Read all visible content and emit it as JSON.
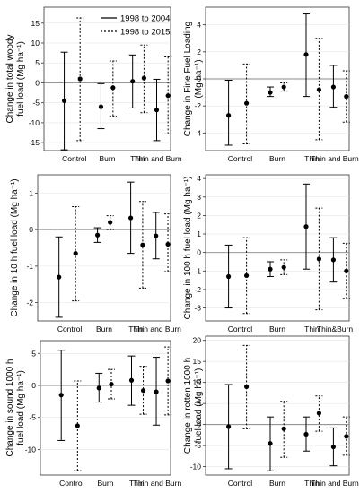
{
  "legend": {
    "solid_label": "1998 to 2004",
    "dotted_label": "1998 to 2015"
  },
  "chart_data": [
    {
      "type": "errorbar",
      "ylabel_lines": [
        "Change in total woody",
        "fuel load (Mg ha⁻¹)"
      ],
      "ylim": [
        -17,
        19
      ],
      "yticks": [
        -15,
        -10,
        -5,
        0,
        5,
        10,
        15
      ],
      "categories": [
        "Control",
        "Burn",
        "Thin",
        "Thin and Burn"
      ],
      "series": [
        {
          "name": "1998 to 2004",
          "mean": [
            -4.5,
            -6.0,
            0.4,
            -6.8
          ],
          "low": [
            -16.8,
            -11.5,
            -6.3,
            -14.5
          ],
          "high": [
            7.7,
            -0.2,
            7.0,
            0.9
          ]
        },
        {
          "name": "1998 to 2015",
          "mean": [
            1.0,
            -1.2,
            1.2,
            -3.2
          ],
          "low": [
            -14.5,
            -8.3,
            -7.5,
            -12.8
          ],
          "high": [
            16.3,
            5.5,
            9.5,
            6.5
          ]
        }
      ],
      "show_legend": true
    },
    {
      "type": "errorbar",
      "ylabel_lines": [
        "Change in Fine Fuel Loading",
        "(Mg ha⁻¹)"
      ],
      "ylim": [
        -5.3,
        5.3
      ],
      "yticks": [
        -4,
        -2,
        0,
        2,
        4
      ],
      "categories": [
        "Control",
        "Burn",
        "Thin",
        "Thin and Burn"
      ],
      "series": [
        {
          "name": "1998 to 2004",
          "mean": [
            -2.7,
            -1.0,
            1.8,
            -0.6
          ],
          "low": [
            -4.9,
            -1.3,
            -1.3,
            -2.1
          ],
          "high": [
            -0.1,
            -0.6,
            4.8,
            1.0
          ]
        },
        {
          "name": "1998 to 2015",
          "mean": [
            -1.8,
            -0.6,
            -0.8,
            -1.3
          ],
          "low": [
            -4.8,
            -0.9,
            -4.5,
            -3.2
          ],
          "high": [
            1.1,
            -0.3,
            3.0,
            0.6
          ]
        }
      ]
    },
    {
      "type": "errorbar",
      "ylabel_lines": [
        "Change in 10 h fuel load (Mg ha⁻¹)"
      ],
      "ylim": [
        -2.5,
        1.5
      ],
      "yticks": [
        -2,
        -1,
        0,
        1
      ],
      "categories": [
        "Control",
        "Burn",
        "Thin",
        "Thin and Burn"
      ],
      "series": [
        {
          "name": "1998 to 2004",
          "mean": [
            -1.3,
            -0.15,
            0.32,
            -0.17
          ],
          "low": [
            -2.4,
            -0.35,
            -0.65,
            -0.8
          ],
          "high": [
            -0.2,
            0.05,
            1.3,
            0.47
          ]
        },
        {
          "name": "1998 to 2015",
          "mean": [
            -0.65,
            0.2,
            -0.42,
            -0.4
          ],
          "low": [
            -1.95,
            0.0,
            -1.6,
            -1.15
          ],
          "high": [
            0.63,
            0.38,
            0.77,
            0.43
          ]
        }
      ]
    },
    {
      "type": "errorbar",
      "ylabel_lines": [
        "Change in 100 h fuel load (Mg ha⁻¹)"
      ],
      "ylim": [
        -3.7,
        4.2
      ],
      "yticks": [
        -3,
        -2,
        -1,
        0,
        1,
        2,
        3,
        4
      ],
      "categories": [
        "Control",
        "Burn",
        "Thin",
        "Thin&Burn"
      ],
      "series": [
        {
          "name": "1998 to 2004",
          "mean": [
            -1.3,
            -0.9,
            1.4,
            -0.4
          ],
          "low": [
            -3.0,
            -1.3,
            -0.9,
            -1.6
          ],
          "high": [
            0.4,
            -0.5,
            3.7,
            0.8
          ]
        },
        {
          "name": "1998 to 2015",
          "mean": [
            -1.25,
            -0.8,
            -0.35,
            -1.0
          ],
          "low": [
            -3.3,
            -1.2,
            -3.1,
            -2.5
          ],
          "high": [
            0.8,
            -0.4,
            2.4,
            0.5
          ]
        }
      ]
    },
    {
      "type": "errorbar",
      "ylabel_lines": [
        "Change in sound 1000 h",
        "fuel load (Mg ha⁻¹)"
      ],
      "ylim": [
        -14,
        7
      ],
      "yticks": [
        -10,
        -5,
        0,
        5
      ],
      "categories": [
        "Control",
        "Burn",
        "Thin",
        "Thin and Burn"
      ],
      "series": [
        {
          "name": "1998 to 2004",
          "mean": [
            -1.5,
            -0.4,
            0.8,
            -1.0
          ],
          "low": [
            -8.6,
            -2.6,
            -3.1,
            -6.2
          ],
          "high": [
            5.5,
            1.9,
            4.6,
            4.4
          ]
        },
        {
          "name": "1998 to 2015",
          "mean": [
            -6.3,
            0.2,
            -0.8,
            0.7
          ],
          "low": [
            -13.3,
            -2.1,
            -4.5,
            -4.6
          ],
          "high": [
            0.7,
            2.5,
            3.0,
            6.0
          ]
        }
      ]
    },
    {
      "type": "errorbar",
      "ylabel_lines": [
        "Change in rotten 1000 h",
        "fuel load (Mg ha⁻¹)"
      ],
      "ylim": [
        -12,
        21
      ],
      "yticks": [
        -10,
        -5,
        0,
        5,
        10,
        15,
        20
      ],
      "categories": [
        "Control",
        "Burn",
        "Thin",
        "Thin and Burn"
      ],
      "series": [
        {
          "name": "1998 to 2004",
          "mean": [
            -0.5,
            -4.5,
            -2.3,
            -5.3
          ],
          "low": [
            -10.5,
            -11.0,
            -6.3,
            -9.8
          ],
          "high": [
            9.5,
            1.8,
            1.8,
            -0.8
          ]
        },
        {
          "name": "1998 to 2015",
          "mean": [
            9.0,
            -1.0,
            2.7,
            -2.8
          ],
          "low": [
            -1.0,
            -7.8,
            -1.6,
            -7.3
          ],
          "high": [
            18.8,
            5.5,
            6.8,
            1.8
          ]
        }
      ]
    }
  ]
}
